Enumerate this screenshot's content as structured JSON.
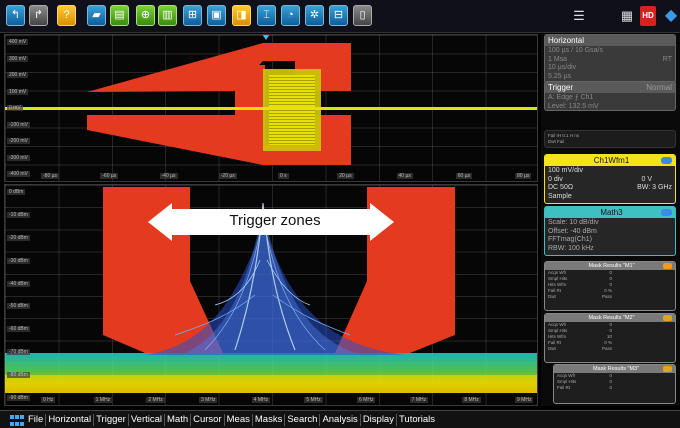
{
  "toolbar": {
    "buttons": [
      {
        "icon": "undo-icon",
        "glyph": "↰",
        "color": "blue"
      },
      {
        "icon": "redo-icon",
        "glyph": "↱",
        "color": "grey"
      },
      {
        "icon": "help-icon",
        "glyph": "?",
        "color": "yellow"
      },
      {
        "icon": "erase-icon",
        "glyph": "▰",
        "color": "blue"
      },
      {
        "icon": "print-icon",
        "glyph": "▤",
        "color": "green"
      },
      {
        "icon": "zoom-icon",
        "glyph": "⊕",
        "color": "green"
      },
      {
        "icon": "histogram-icon",
        "glyph": "▥",
        "color": "green"
      },
      {
        "icon": "measure-icon",
        "glyph": "⊞",
        "color": "blue"
      },
      {
        "icon": "mask-icon",
        "glyph": "▣",
        "color": "blue"
      },
      {
        "icon": "gate-icon",
        "glyph": "◨",
        "color": "yellow"
      },
      {
        "icon": "cursor-icon",
        "glyph": "⌶",
        "color": "blue"
      },
      {
        "icon": "search-icon",
        "glyph": "◔",
        "color": "blue"
      },
      {
        "icon": "fft-icon",
        "glyph": "✲",
        "color": "blue"
      },
      {
        "icon": "save-icon",
        "glyph": "⊟",
        "color": "blue"
      },
      {
        "icon": "delete-icon",
        "glyph": "▯",
        "color": "grey"
      }
    ],
    "right_icons": [
      {
        "icon": "signal-bar-icon",
        "glyph": "☰"
      },
      {
        "icon": "layout-icon",
        "glyph": "▦"
      },
      {
        "icon": "hd-icon",
        "glyph": "HD"
      },
      {
        "icon": "rohde-logo-icon",
        "glyph": "◆"
      }
    ]
  },
  "top_pane": {
    "y_labels": [
      "400 mV",
      "300 mV",
      "200 mV",
      "100 mV",
      "0 mV",
      "-100 mV",
      "-200 mV",
      "-300 mV",
      "-400 mV"
    ],
    "x_labels": [
      "-80 µs",
      "-60 µs",
      "-40 µs",
      "-20 µs",
      "0 s",
      "20 µs",
      "40 µs",
      "60 µs",
      "80 µs"
    ]
  },
  "bottom_pane": {
    "y_labels": [
      "0 dBm",
      "-10 dBm",
      "-20 dBm",
      "-30 dBm",
      "-40 dBm",
      "-50 dBm",
      "-60 dBm",
      "-70 dBm",
      "-80 dBm",
      "-90 dBm"
    ],
    "x_labels": [
      "0 Hz",
      "1 MHz",
      "2 MHz",
      "3 MHz",
      "4 MHz",
      "5 MHz",
      "6 MHz",
      "7 MHz",
      "8 MHz",
      "9 MHz"
    ]
  },
  "callout": {
    "text": "Trigger zones"
  },
  "side": {
    "horizontal": {
      "title": "Horizontal",
      "line1": "100 µs / 10 Gsa/s",
      "line2": "1 Msa",
      "line2_right": "RT",
      "line3": "10 µs/div",
      "line4": "5.25 µs"
    },
    "trigger": {
      "title": "Trigger",
      "title_right": "Normal",
      "line1": "A:  Edge  ⨍  Ch1",
      "line2": "Level: 132.5 mV"
    },
    "trigger_extra": {
      "line1": "Fail IH   0.1 H   ns",
      "line2": "Dwt   Fail"
    },
    "ch1": {
      "title": "Ch1Wfm1",
      "line1": "100 mV/div",
      "line2": "0 div",
      "line2_right": "0 V",
      "line3": "DC 50Ω",
      "line3_right": "BW: 3 GHz",
      "line4": "Sample"
    },
    "math": {
      "title": "Math3",
      "line1": "Scale: 10 dB/div",
      "line2": "Offset: -40 dBm",
      "line3": "FFTmag(Ch1)",
      "line4": "RBW: 100 kHz"
    },
    "mask1": {
      "title": "Mask Results \"M1\"",
      "rows": [
        [
          "Acqs Wfr",
          "0"
        ],
        [
          "Smpl Hits",
          "0"
        ],
        [
          "Hits Wfm",
          "0"
        ],
        [
          "Fail Rt",
          "0 %"
        ],
        [
          "Dwt",
          "Pass"
        ]
      ]
    },
    "mask2": {
      "title": "Mask Results \"M2\"",
      "rows": [
        [
          "Acqs Wfr",
          "0"
        ],
        [
          "Smpl Hits",
          "0"
        ],
        [
          "Hits Wfm",
          "10"
        ],
        [
          "Fail Rt",
          "0 %"
        ],
        [
          "Dwt",
          "Pass"
        ]
      ]
    },
    "mask3": {
      "title": "Mask Results \"M3\"",
      "rows": [
        [
          "Acqs Wfr",
          "0"
        ],
        [
          "Smpl Hits",
          "0"
        ],
        [
          "Fail Rt",
          "0"
        ]
      ]
    }
  },
  "menu": {
    "items": [
      "File",
      "Horizontal",
      "Trigger",
      "Vertical",
      "Math",
      "Cursor",
      "Meas",
      "Masks",
      "Search",
      "Analysis",
      "Display",
      "Tutorials"
    ]
  },
  "colors": {
    "mask_red": "#e33a20",
    "trace_yellow": "#e8e000",
    "ch1_yellow": "#f5e31a",
    "math_teal": "#3ec0c0",
    "toolbar_blue": "#1f7fc0"
  }
}
